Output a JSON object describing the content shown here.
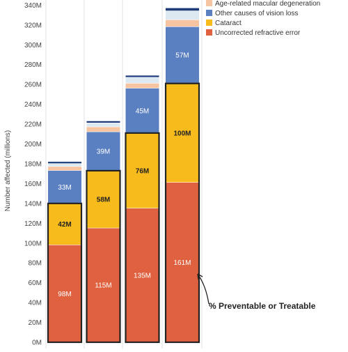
{
  "chart_data": {
    "type": "bar",
    "stacked": true,
    "categories": [
      "",
      "",
      "",
      ""
    ],
    "ylabel": "Number affected (millions)",
    "xlabel": "",
    "title": "",
    "ylim": [
      0,
      345
    ],
    "yticks": [
      0,
      20,
      40,
      60,
      80,
      100,
      120,
      140,
      160,
      180,
      200,
      220,
      240,
      260,
      280,
      300,
      320,
      340
    ],
    "ytick_labels": [
      "0M",
      "20M",
      "40M",
      "60M",
      "80M",
      "100M",
      "120M",
      "140M",
      "160M",
      "180M",
      "200M",
      "220M",
      "240M",
      "260M",
      "280M",
      "300M",
      "320M",
      "340M"
    ],
    "series": [
      {
        "name": "Uncorrected refractive error",
        "color": "#e0613f",
        "label_color": "#ffffff",
        "values": [
          98,
          115,
          135,
          161
        ],
        "labels": [
          "98M",
          "115M",
          "135M",
          "161M"
        ]
      },
      {
        "name": "Cataract",
        "color": "#f7bb1c",
        "label_color": "#222222",
        "values": [
          42,
          58,
          76,
          100
        ],
        "labels": [
          "42M",
          "58M",
          "76M",
          "100M"
        ]
      },
      {
        "name": "Other causes of vision loss",
        "color": "#5b80c2",
        "label_color": "#ffffff",
        "values": [
          33,
          39,
          45,
          57
        ],
        "labels": [
          "33M",
          "39M",
          "45M",
          "57M"
        ]
      },
      {
        "name": "Age-related macular degeneration",
        "color": "#f7c4a1",
        "label_color": "#222222",
        "values": [
          4,
          5,
          5,
          7
        ],
        "labels": [
          "",
          "",
          "",
          ""
        ]
      },
      {
        "name": "",
        "color": "#dce9f0",
        "label_color": "#222222",
        "values": [
          3,
          4,
          6,
          9
        ],
        "labels": [
          "",
          "",
          "",
          ""
        ]
      },
      {
        "name": "",
        "color": "#1f3c7a",
        "label_color": "#ffffff",
        "values": [
          2,
          2,
          2,
          3
        ],
        "labels": [
          "",
          "",
          "",
          ""
        ]
      }
    ],
    "legend": {
      "placement": "top-right",
      "items": [
        {
          "name": "Age-related macular degeneration",
          "color": "#f7c4a1"
        },
        {
          "name": "Other causes of vision loss",
          "color": "#5b80c2"
        },
        {
          "name": "Cataract",
          "color": "#f7bb1c"
        },
        {
          "name": "Uncorrected refractive error",
          "color": "#e0613f"
        }
      ]
    },
    "highlight_outline": "preventable portion (Uncorrected refractive error + Cataract)",
    "annotation": {
      "text": "% Preventable or Treatable",
      "target_bar": 3
    }
  }
}
